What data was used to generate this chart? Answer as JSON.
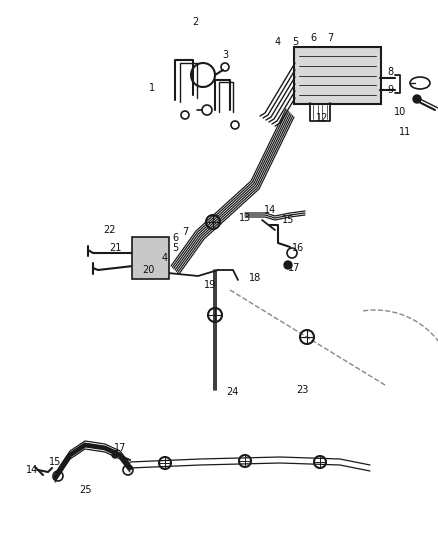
{
  "bg_color": "#ffffff",
  "fig_width": 4.38,
  "fig_height": 5.33,
  "dpi": 100,
  "line_color": "#1a1a1a",
  "label_fontsize": 7.0,
  "label_color": "#111111"
}
